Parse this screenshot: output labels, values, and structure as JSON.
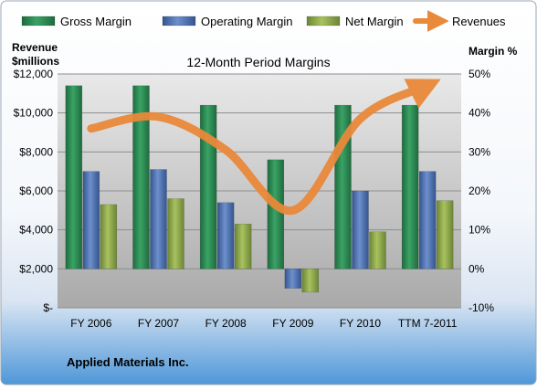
{
  "chart_data": {
    "type": "bar",
    "title": "12-Month Period Margins",
    "company": "Applied Materials Inc.",
    "left_axis_title_line1": "Revenue",
    "left_axis_title_line2": "$millions",
    "right_axis_title": "Margin %",
    "categories": [
      "FY 2006",
      "FY 2007",
      "FY 2008",
      "FY 2009",
      "FY 2010",
      "TTM 7-2011"
    ],
    "legend_placement": "top",
    "left_axis": {
      "min": 0,
      "max": 12000,
      "step": 2000,
      "tick_labels": [
        "$-",
        "$2,000",
        "$4,000",
        "$6,000",
        "$8,000",
        "$10,000",
        "$12,000"
      ]
    },
    "right_axis": {
      "min": -10,
      "max": 50,
      "step": 10,
      "tick_labels": [
        "-10%",
        "0%",
        "10%",
        "20%",
        "30%",
        "40%",
        "50%"
      ]
    },
    "series": [
      {
        "name": "Gross Margin",
        "axis": "right",
        "kind": "bar",
        "color": "#2e8b57",
        "values": [
          47,
          47,
          42,
          28,
          42,
          42
        ]
      },
      {
        "name": "Operating Margin",
        "axis": "right",
        "kind": "bar",
        "color": "#4f74b4",
        "values": [
          25,
          25.5,
          17,
          -5,
          20,
          25
        ]
      },
      {
        "name": "Net Margin",
        "axis": "right",
        "kind": "bar",
        "color": "#8eaa4c",
        "values": [
          16.5,
          18,
          11.5,
          -6,
          9.5,
          17.5
        ]
      },
      {
        "name": "Revenues",
        "axis": "left",
        "kind": "line",
        "color": "#e9893a",
        "values": [
          9200,
          9800,
          8100,
          5000,
          9700,
          11400
        ]
      }
    ]
  }
}
